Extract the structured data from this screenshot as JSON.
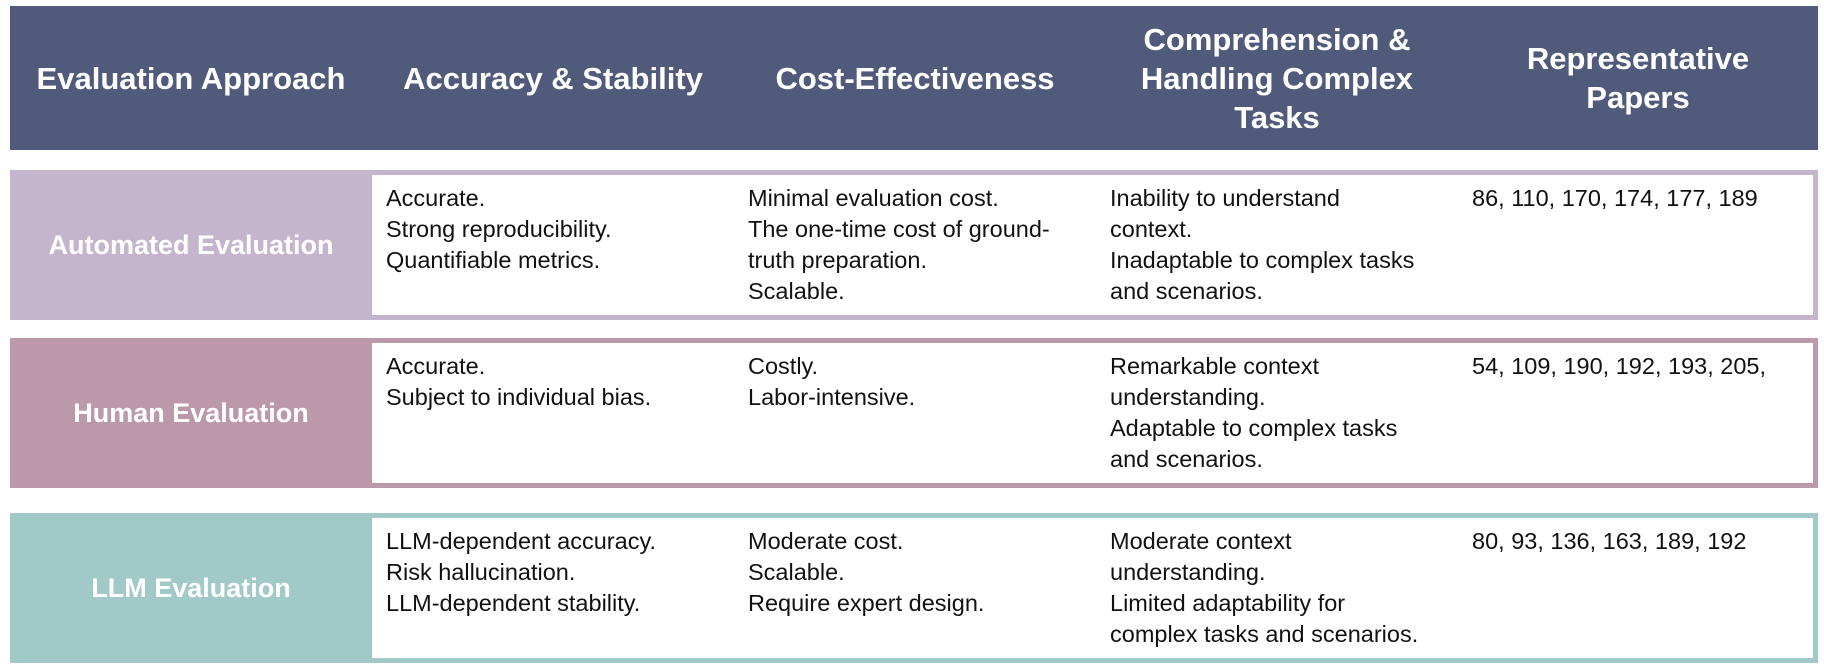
{
  "header": {
    "col_approach": "Evaluation Approach",
    "col_accuracy": "Accuracy & Stability",
    "col_cost": "Cost-Effectiveness",
    "col_comprehension": [
      "Comprehension &",
      "Handling Complex",
      "Tasks"
    ],
    "col_papers": [
      "Representative",
      "Papers"
    ]
  },
  "colors": {
    "header_bg": "#505a7b",
    "automated": "#c4b4cc",
    "human": "#bb98aa",
    "llm": "#a1c9c7"
  },
  "rows": [
    {
      "label": "Automated Evaluation",
      "accuracy": [
        "Accurate.",
        "Strong reproducibility.",
        "Quantifiable metrics."
      ],
      "cost": [
        "Minimal evaluation cost.",
        "The one-time cost of ground-",
        "truth preparation.",
        "Scalable."
      ],
      "comprehension": [
        "Inability to understand",
        "context.",
        "Inadaptable to complex tasks",
        "and scenarios."
      ],
      "papers": [
        "86, 110, 170, 174, 177, 189"
      ]
    },
    {
      "label": "Human Evaluation",
      "accuracy": [
        "Accurate.",
        "Subject to individual bias."
      ],
      "cost": [
        "Costly.",
        "Labor-intensive."
      ],
      "comprehension": [
        "Remarkable context",
        "understanding.",
        "Adaptable to complex tasks",
        "and scenarios."
      ],
      "papers": [
        "54, 109, 190, 192, 193, 205,"
      ]
    },
    {
      "label": "LLM Evaluation",
      "accuracy": [
        "LLM-dependent accuracy.",
        "Risk hallucination.",
        "LLM-dependent stability."
      ],
      "cost": [
        "Moderate cost.",
        "Scalable.",
        "Require expert design."
      ],
      "comprehension": [
        "Moderate context",
        "understanding.",
        "Limited adaptability for",
        "complex tasks and scenarios."
      ],
      "papers": [
        "80, 93, 136, 163, 189, 192"
      ]
    }
  ]
}
